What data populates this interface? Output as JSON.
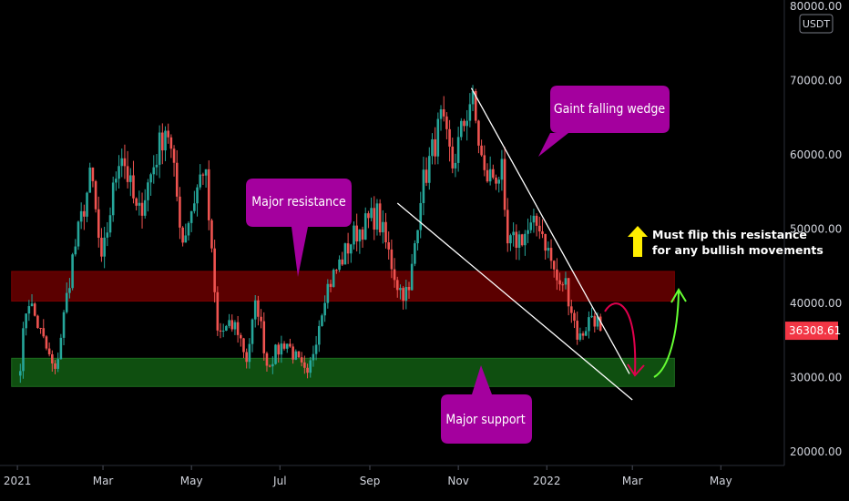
{
  "chart_data": {
    "type": "candlestick",
    "currency": "USDT",
    "yticks": [
      {
        "value": 20000,
        "label": "20000.00"
      },
      {
        "value": 30000,
        "label": "30000.00"
      },
      {
        "value": 40000,
        "label": "40000.00"
      },
      {
        "value": 50000,
        "label": "50000.00"
      },
      {
        "value": 60000,
        "label": "60000.00"
      },
      {
        "value": 70000,
        "label": "70000.00"
      },
      {
        "value": 80000,
        "label": "80000.00"
      }
    ],
    "ylim": [
      19000,
      80500
    ],
    "xticks": [
      {
        "label": "2021",
        "date": "2021-01-01"
      },
      {
        "label": "Mar",
        "date": "2021-03-01"
      },
      {
        "label": "May",
        "date": "2021-05-01"
      },
      {
        "label": "Jul",
        "date": "2021-07-01"
      },
      {
        "label": "Sep",
        "date": "2021-09-01"
      },
      {
        "label": "Nov",
        "date": "2021-11-01"
      },
      {
        "label": "2022",
        "date": "2022-01-01"
      },
      {
        "label": "Mar",
        "date": "2022-03-01"
      },
      {
        "label": "May",
        "date": "2022-05-01"
      }
    ],
    "xlim": [
      "2020-12-20",
      "2022-06-10"
    ],
    "last_price": {
      "value": 36308.61,
      "label": "36308.61"
    },
    "colors": {
      "up": "#26a69a",
      "down": "#ef5350",
      "resistance_zone": "#5b0000",
      "support_zone": "#0f4f10",
      "callout": "#a4009e"
    },
    "resistance_zone": {
      "low": 40300,
      "high": 44300,
      "start": "2020-12-28",
      "end": "2022-03-30"
    },
    "support_zone": {
      "low": 28800,
      "high": 32600,
      "start": "2020-12-28",
      "end": "2022-03-30"
    },
    "wedge": {
      "upper": [
        {
          "date": "2021-11-10",
          "price": 69000
        },
        {
          "date": "2022-02-27",
          "price": 30500
        }
      ],
      "lower": [
        {
          "date": "2021-09-20",
          "price": 53500
        },
        {
          "date": "2022-03-01",
          "price": 27000
        }
      ]
    },
    "anchors": [
      {
        "date": "2021-01-03",
        "price": 32000
      },
      {
        "date": "2021-01-08",
        "price": 41000
      },
      {
        "date": "2021-01-27",
        "price": 30500
      },
      {
        "date": "2021-02-08",
        "price": 46000
      },
      {
        "date": "2021-02-21",
        "price": 57500
      },
      {
        "date": "2021-02-28",
        "price": 45000
      },
      {
        "date": "2021-03-13",
        "price": 61200
      },
      {
        "date": "2021-03-25",
        "price": 51500
      },
      {
        "date": "2021-04-14",
        "price": 64500
      },
      {
        "date": "2021-04-25",
        "price": 48500
      },
      {
        "date": "2021-05-10",
        "price": 59000
      },
      {
        "date": "2021-05-19",
        "price": 36000
      },
      {
        "date": "2021-06-01",
        "price": 37000
      },
      {
        "date": "2021-06-08",
        "price": 32500
      },
      {
        "date": "2021-06-15",
        "price": 40500
      },
      {
        "date": "2021-06-22",
        "price": 31800
      },
      {
        "date": "2021-07-05",
        "price": 35000
      },
      {
        "date": "2021-07-20",
        "price": 29800
      },
      {
        "date": "2021-08-01",
        "price": 41500
      },
      {
        "date": "2021-08-22",
        "price": 49500
      },
      {
        "date": "2021-09-06",
        "price": 52000
      },
      {
        "date": "2021-09-21",
        "price": 42000
      },
      {
        "date": "2021-09-28",
        "price": 41200
      },
      {
        "date": "2021-10-06",
        "price": 55000
      },
      {
        "date": "2021-10-20",
        "price": 64500
      },
      {
        "date": "2021-10-28",
        "price": 58500
      },
      {
        "date": "2021-11-10",
        "price": 68000
      },
      {
        "date": "2021-11-19",
        "price": 57000
      },
      {
        "date": "2021-12-01",
        "price": 57500
      },
      {
        "date": "2021-12-04",
        "price": 47500
      },
      {
        "date": "2021-12-27",
        "price": 50800
      },
      {
        "date": "2022-01-10",
        "price": 41800
      },
      {
        "date": "2022-01-13",
        "price": 43500
      },
      {
        "date": "2022-01-23",
        "price": 35000
      },
      {
        "date": "2022-02-01",
        "price": 38500
      },
      {
        "date": "2022-02-05",
        "price": 37500
      },
      {
        "date": "2022-02-08",
        "price": 36308.61
      }
    ]
  },
  "annotations": {
    "resistance_label": "Major resistance",
    "support_label": "Major support",
    "wedge_label": "Gaint falling wedge",
    "note_line1": "Must flip this resistance",
    "note_line2": "for any bullish movements"
  }
}
